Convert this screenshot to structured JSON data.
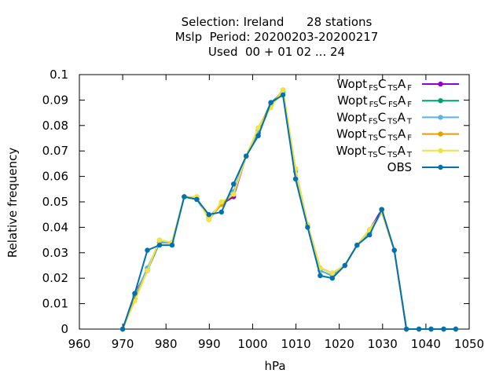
{
  "chart_data": {
    "type": "line",
    "title_lines": [
      "Selection: Ireland      28 stations",
      "Mslp  Period: 20200203-20200217",
      "Used  00 + 01 02 ... 24"
    ],
    "xlabel": "hPa",
    "ylabel": "Relative frequency",
    "xlim": [
      960,
      1050
    ],
    "ylim": [
      0,
      0.1
    ],
    "x_ticks": [
      "960",
      "970",
      "980",
      "990",
      "1000",
      "1010",
      "1020",
      "1030",
      "1040",
      "1050"
    ],
    "y_ticks": [
      "0",
      "0.01",
      "0.02",
      "0.03",
      "0.04",
      "0.05",
      "0.06",
      "0.07",
      "0.08",
      "0.09",
      "0.1"
    ],
    "grid": false,
    "legend_position": "top-right",
    "x": [
      970,
      972.8,
      975.7,
      978.5,
      981.4,
      984.2,
      987.1,
      989.9,
      992.8,
      995.6,
      998.5,
      1001.3,
      1004.2,
      1007,
      1009.9,
      1012.7,
      1015.6,
      1018.4,
      1021.3,
      1024.1,
      1027,
      1029.8,
      1032.7,
      1035.5,
      1038.4,
      1041.2,
      1044.1,
      1046.9
    ],
    "series": [
      {
        "name": "Wopt FS C TS A F",
        "name_parts": [
          [
            "Wopt",
            ""
          ],
          [
            "FS",
            "sub"
          ],
          [
            "C",
            ""
          ],
          [
            "TS",
            "sub"
          ],
          [
            "A",
            ""
          ],
          [
            "F",
            "sub"
          ]
        ],
        "color": "#9400d3",
        "values": [
          0.0,
          0.014,
          0.023,
          0.034,
          0.034,
          0.052,
          0.051,
          0.044,
          0.049,
          0.052,
          0.068,
          0.077,
          0.088,
          0.093,
          0.063,
          0.041,
          0.024,
          0.022,
          0.025,
          0.033,
          0.039,
          0.047,
          0.031,
          0.0,
          0.0,
          0.0,
          0.0,
          0.0
        ]
      },
      {
        "name": "Wopt FS C FS A F",
        "name_parts": [
          [
            "Wopt",
            ""
          ],
          [
            "FS",
            "sub"
          ],
          [
            "C",
            ""
          ],
          [
            "FS",
            "sub"
          ],
          [
            "A",
            ""
          ],
          [
            "F",
            "sub"
          ]
        ],
        "color": "#009e73",
        "values": [
          0.0,
          0.013,
          0.023,
          0.034,
          0.034,
          0.052,
          0.051,
          0.044,
          0.049,
          0.053,
          0.068,
          0.078,
          0.089,
          0.093,
          0.062,
          0.041,
          0.023,
          0.021,
          0.025,
          0.033,
          0.038,
          0.046,
          0.031,
          0.0,
          0.0,
          0.0,
          0.0,
          0.0
        ]
      },
      {
        "name": "Wopt FS C TS A T",
        "name_parts": [
          [
            "Wopt",
            ""
          ],
          [
            "FS",
            "sub"
          ],
          [
            "C",
            ""
          ],
          [
            "TS",
            "sub"
          ],
          [
            "A",
            ""
          ],
          [
            "T",
            "sub"
          ]
        ],
        "color": "#56b4e9",
        "values": [
          0.0,
          0.013,
          0.024,
          0.034,
          0.034,
          0.052,
          0.051,
          0.044,
          0.049,
          0.054,
          0.068,
          0.078,
          0.088,
          0.093,
          0.062,
          0.041,
          0.023,
          0.021,
          0.025,
          0.033,
          0.038,
          0.046,
          0.031,
          0.0,
          0.0,
          0.0,
          0.0,
          0.0
        ]
      },
      {
        "name": "Wopt TS C TS A F",
        "name_parts": [
          [
            "Wopt",
            ""
          ],
          [
            "TS",
            "sub"
          ],
          [
            "C",
            ""
          ],
          [
            "TS",
            "sub"
          ],
          [
            "A",
            ""
          ],
          [
            "F",
            "sub"
          ]
        ],
        "color": "#e69f00",
        "values": [
          0.0,
          0.012,
          0.023,
          0.035,
          0.034,
          0.052,
          0.052,
          0.043,
          0.049,
          0.053,
          0.068,
          0.079,
          0.088,
          0.094,
          0.063,
          0.041,
          0.024,
          0.022,
          0.025,
          0.033,
          0.039,
          0.046,
          0.031,
          0.0,
          0.0,
          0.0,
          0.0,
          0.0
        ]
      },
      {
        "name": "Wopt TS C TS A T",
        "name_parts": [
          [
            "Wopt",
            ""
          ],
          [
            "TS",
            "sub"
          ],
          [
            "C",
            ""
          ],
          [
            "TS",
            "sub"
          ],
          [
            "A",
            ""
          ],
          [
            "T",
            "sub"
          ]
        ],
        "color": "#f0e442",
        "values": [
          0.0,
          0.011,
          0.023,
          0.035,
          0.034,
          0.052,
          0.052,
          0.043,
          0.05,
          0.053,
          0.068,
          0.079,
          0.087,
          0.094,
          0.063,
          0.041,
          0.024,
          0.022,
          0.025,
          0.033,
          0.039,
          0.046,
          0.031,
          0.0,
          0.0,
          0.0,
          0.0,
          0.0
        ]
      },
      {
        "name": "OBS",
        "name_parts": [
          [
            "OBS",
            ""
          ]
        ],
        "color": "#0072b2",
        "values": [
          0.0,
          0.014,
          0.031,
          0.033,
          0.033,
          0.052,
          0.051,
          0.045,
          0.046,
          0.057,
          0.068,
          0.076,
          0.089,
          0.092,
          0.059,
          0.04,
          0.021,
          0.02,
          0.025,
          0.033,
          0.037,
          0.047,
          0.031,
          0.0,
          0.0,
          0.0,
          0.0,
          0.0
        ]
      }
    ]
  }
}
